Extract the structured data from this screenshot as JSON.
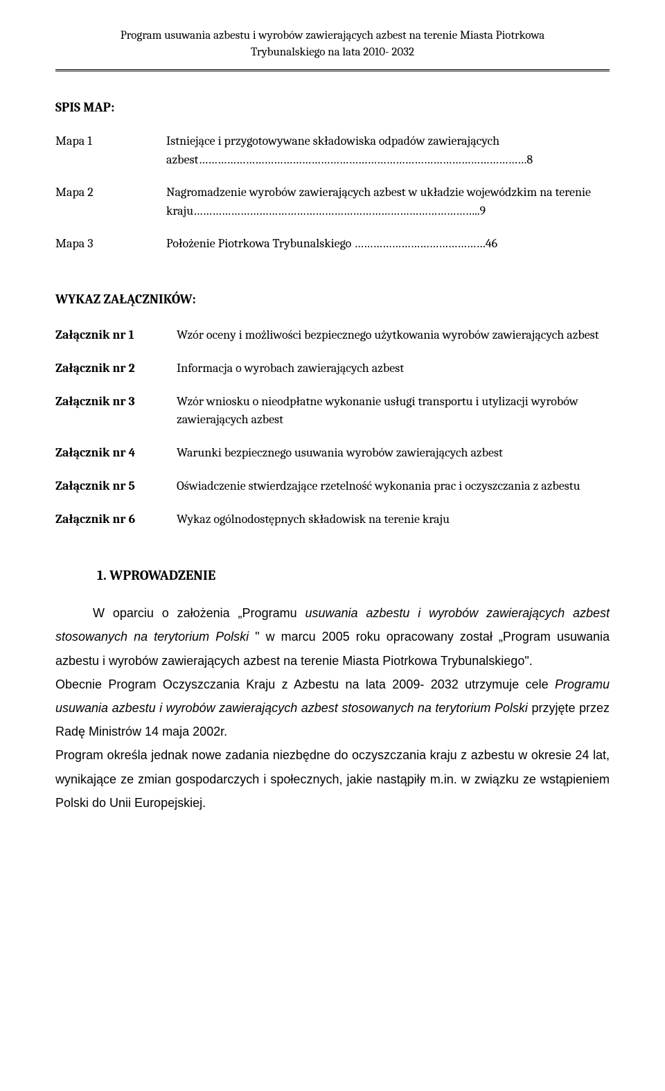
{
  "header": {
    "line1": "Program usuwania azbestu i wyrobów zawierających azbest na terenie Miasta Piotrkowa",
    "line2": "Trybunalskiego na lata 2010- 2032"
  },
  "spisMap": {
    "title": "SPIS MAP:",
    "rows": [
      {
        "label": "Mapa 1",
        "text": "Istniejące i przygotowywane składowiska odpadów zawierających azbest……………………………………………………………………………………………8"
      },
      {
        "label": "Mapa 2",
        "text": "Nagromadzenie wyrobów zawierających azbest w układzie wojewódzkim na terenie kraju………………………………………………………………………………..9"
      },
      {
        "label": "Mapa 3",
        "text": "Położenie Piotrkowa Trybunalskiego ……………………………………46"
      }
    ]
  },
  "attachments": {
    "title": "WYKAZ ZAŁĄCZNIKÓW:",
    "rows": [
      {
        "label": "Załącznik nr 1",
        "text": "Wzór oceny i możliwości bezpiecznego użytkowania wyrobów zawierających azbest"
      },
      {
        "label": "Załącznik nr 2",
        "text": "Informacja o wyrobach zawierających azbest"
      },
      {
        "label": "Załącznik nr 3",
        "text": "Wzór wniosku  o nieodpłatne wykonanie usługi transportu i utylizacji wyrobów zawierających azbest"
      },
      {
        "label": "Załącznik nr 4",
        "text": " Warunki bezpiecznego usuwania wyrobów zawierających azbest"
      },
      {
        "label": "Załącznik nr 5",
        "text": "Oświadczenie stwierdzające rzetelność wykonania prac i oczyszczania z azbestu"
      },
      {
        "label": "Załącznik nr 6",
        "text": "Wykaz ogólnodostępnych składowisk na terenie kraju"
      }
    ]
  },
  "intro": {
    "heading": "1. WPROWADZENIE",
    "p1_a": "W oparciu o założenia „Programu ",
    "p1_b": "usuwania azbestu i wyrobów zawierających azbest stosowanych na terytorium Polski ",
    "p1_c": "\" w marcu 2005 roku opracowany został „Program usuwania azbestu i wyrobów zawierających azbest na terenie Miasta Piotrkowa Trybunalskiego\".",
    "p2_a": "Obecnie Program Oczyszczania Kraju z Azbestu na lata 2009- 2032 utrzymuje cele ",
    "p2_b": "Programu usuwania azbestu i wyrobów zawierających azbest stosowanych na terytorium Polski ",
    "p2_c": "przyjęte przez Radę Ministrów 14 maja 2002r.",
    "p3": " Program określa jednak nowe zadania niezbędne do oczyszczania kraju z azbestu w okresie 24 lat, wynikające ze zmian gospodarczych i społecznych, jakie nastąpiły m.in. w związku ze wstąpieniem Polski do Unii Europejskiej."
  }
}
